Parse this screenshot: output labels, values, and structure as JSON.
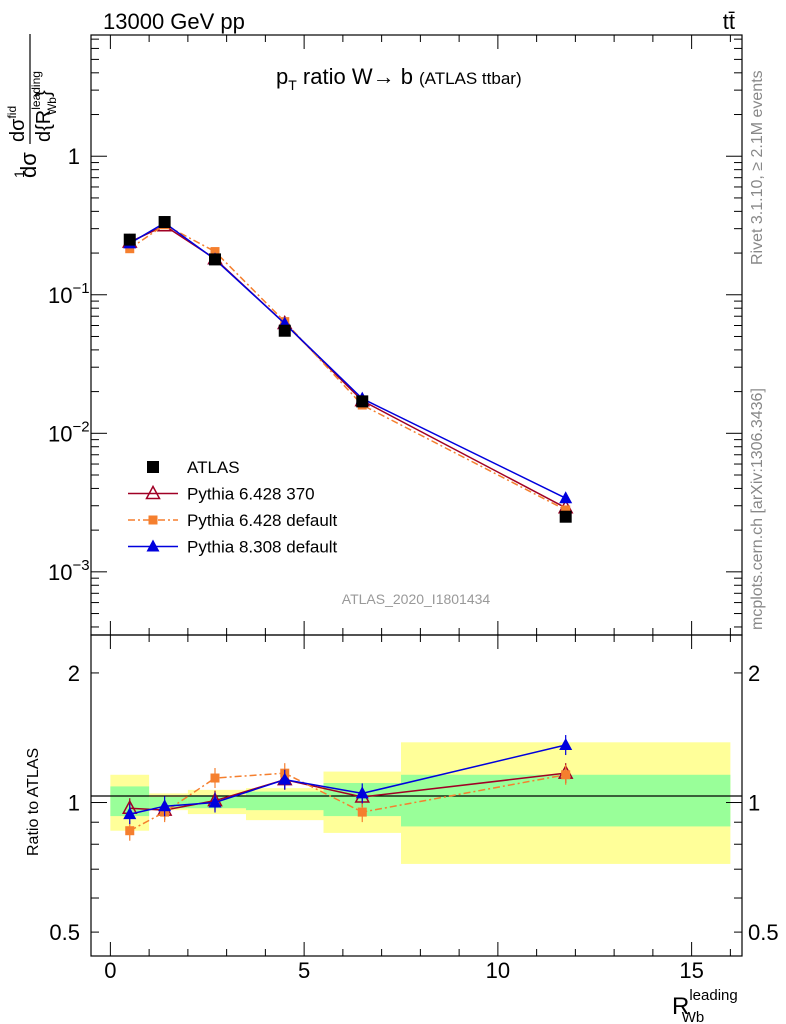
{
  "header": {
    "energy_label": "13000 GeV pp",
    "process_label": "tt̄"
  },
  "side_labels": {
    "rivet": "Rivet 3.1.10, ≥ 2.1M events",
    "mcplots": "mcplots.cern.ch [arXiv:1306.3436]"
  },
  "plot": {
    "title_main": "p",
    "title_sub": "T",
    "title_rest": " ratio W→ b",
    "title_small": "(ATLAS ttbar)",
    "watermark": "ATLAS_2020_I1801434",
    "ylabel_top": "d{R",
    "ylabel_top_sup": "leading",
    "ylabel_top_sub": "Wb",
    "ylabel_top_end": "}",
    "ylabel_pre": "dσ",
    "ylabel_num": "dσ",
    "ylabel_num_sup": "fid",
    "ylabel_frac": "1",
    "ylabel_ratio": "Ratio to ATLAS",
    "xlabel_main": "R",
    "xlabel_sup": "leading",
    "xlabel_sub": "Wb"
  },
  "chart_data": {
    "type": "line",
    "x_axis": {
      "range": [
        -0.5,
        16.3
      ],
      "ticks": [
        0,
        5,
        10,
        15
      ]
    },
    "main_panel": {
      "y_scale": "log",
      "y_range": [
        0.00035,
        7.5
      ],
      "y_tick_labels": [
        {
          "value": 1,
          "label": "1"
        },
        {
          "value": 0.1,
          "label": "10",
          "exp": "−1"
        },
        {
          "value": 0.01,
          "label": "10",
          "exp": "−2"
        },
        {
          "value": 0.001,
          "label": "10",
          "exp": "−3"
        }
      ]
    },
    "ratio_panel": {
      "y_scale": "log",
      "y_range": [
        0.44,
        2.45
      ],
      "y_tick_labels": [
        {
          "value": 0.5,
          "label": "0.5"
        },
        {
          "value": 1,
          "label": "1"
        },
        {
          "value": 2,
          "label": "2"
        }
      ],
      "bands": [
        {
          "x": [
            0,
            1
          ],
          "inner": [
            0.93,
            1.09
          ],
          "outer": [
            0.86,
            1.16
          ]
        },
        {
          "x": [
            1,
            2
          ],
          "inner": [
            0.97,
            1.03
          ],
          "outer": [
            0.96,
            1.05
          ]
        },
        {
          "x": [
            2,
            3.5
          ],
          "inner": [
            0.97,
            1.04
          ],
          "outer": [
            0.94,
            1.07
          ]
        },
        {
          "x": [
            3.5,
            5.5
          ],
          "inner": [
            0.96,
            1.06
          ],
          "outer": [
            0.91,
            1.08
          ]
        },
        {
          "x": [
            5.5,
            7.5
          ],
          "inner": [
            0.93,
            1.11
          ],
          "outer": [
            0.85,
            1.18
          ]
        },
        {
          "x": [
            7.5,
            16
          ],
          "inner": [
            0.88,
            1.16
          ],
          "outer": [
            0.72,
            1.38
          ]
        }
      ]
    },
    "legend": [
      {
        "name": "ATLAS",
        "color": "#000000",
        "marker": "square"
      },
      {
        "name": "Pythia 6.428 370",
        "color": "#a00025",
        "marker": "triangle-open"
      },
      {
        "name": "Pythia 6.428 default",
        "color": "#f57f2e",
        "marker": "square-small",
        "dash": true
      },
      {
        "name": "Pythia 8.308 default",
        "color": "#0000dd",
        "marker": "triangle"
      }
    ],
    "series": [
      {
        "name": "ATLAS",
        "x": [
          0.5,
          1.4,
          2.7,
          4.5,
          6.5,
          11.75
        ],
        "y": [
          0.25,
          0.335,
          0.18,
          0.055,
          0.017,
          0.0025
        ],
        "ratio": [
          1,
          1,
          1,
          1,
          1,
          1
        ]
      },
      {
        "name": "Pythia 6.428 370",
        "x": [
          0.5,
          1.4,
          2.7,
          4.5,
          6.5,
          11.75
        ],
        "y": [
          0.24,
          0.315,
          0.182,
          0.062,
          0.0172,
          0.0029
        ],
        "ratio": [
          0.97,
          0.96,
          1.01,
          1.13,
          1.03,
          1.17
        ]
      },
      {
        "name": "Pythia 6.428 default",
        "x": [
          0.5,
          1.4,
          2.7,
          4.5,
          6.5,
          11.75
        ],
        "y": [
          0.215,
          0.32,
          0.205,
          0.064,
          0.016,
          0.0028
        ],
        "ratio": [
          0.86,
          0.95,
          1.14,
          1.17,
          0.95,
          1.16
        ]
      },
      {
        "name": "Pythia 8.308 default",
        "x": [
          0.5,
          1.4,
          2.7,
          4.5,
          6.5,
          11.75
        ],
        "y": [
          0.235,
          0.33,
          0.18,
          0.062,
          0.0178,
          0.0034
        ],
        "ratio": [
          0.94,
          0.98,
          1.0,
          1.13,
          1.05,
          1.36
        ]
      }
    ]
  }
}
